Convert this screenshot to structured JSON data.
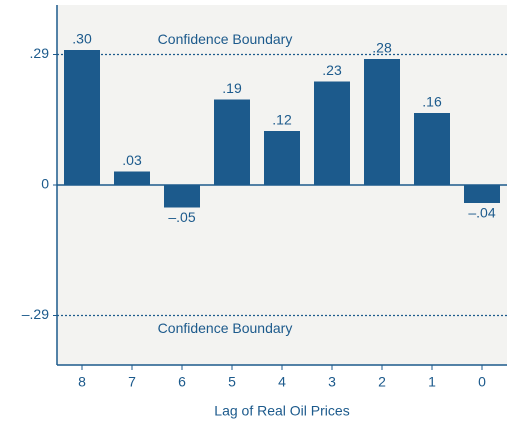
{
  "chart_data": {
    "type": "bar",
    "x_label": "Lag of Real Oil Prices",
    "categories": [
      "8",
      "7",
      "6",
      "5",
      "4",
      "3",
      "2",
      "1",
      "0"
    ],
    "values": [
      0.3,
      0.03,
      -0.05,
      0.19,
      0.12,
      0.23,
      0.28,
      0.16,
      -0.04
    ],
    "value_labels": [
      ".30",
      ".03",
      "–.05",
      ".19",
      ".12",
      ".23",
      ".28",
      ".16",
      "–.04"
    ],
    "color": "#1c5a8c",
    "ylim": [
      -0.4,
      0.4
    ],
    "yticks": [
      {
        "value": 0.29,
        "label": ".29"
      },
      0,
      {
        "value": -0.29,
        "label": "–.29"
      }
    ],
    "reference_lines": [
      {
        "value": 0.29,
        "label": "Confidence Boundary"
      },
      {
        "value": -0.29,
        "label": "Confidence Boundary"
      }
    ]
  }
}
